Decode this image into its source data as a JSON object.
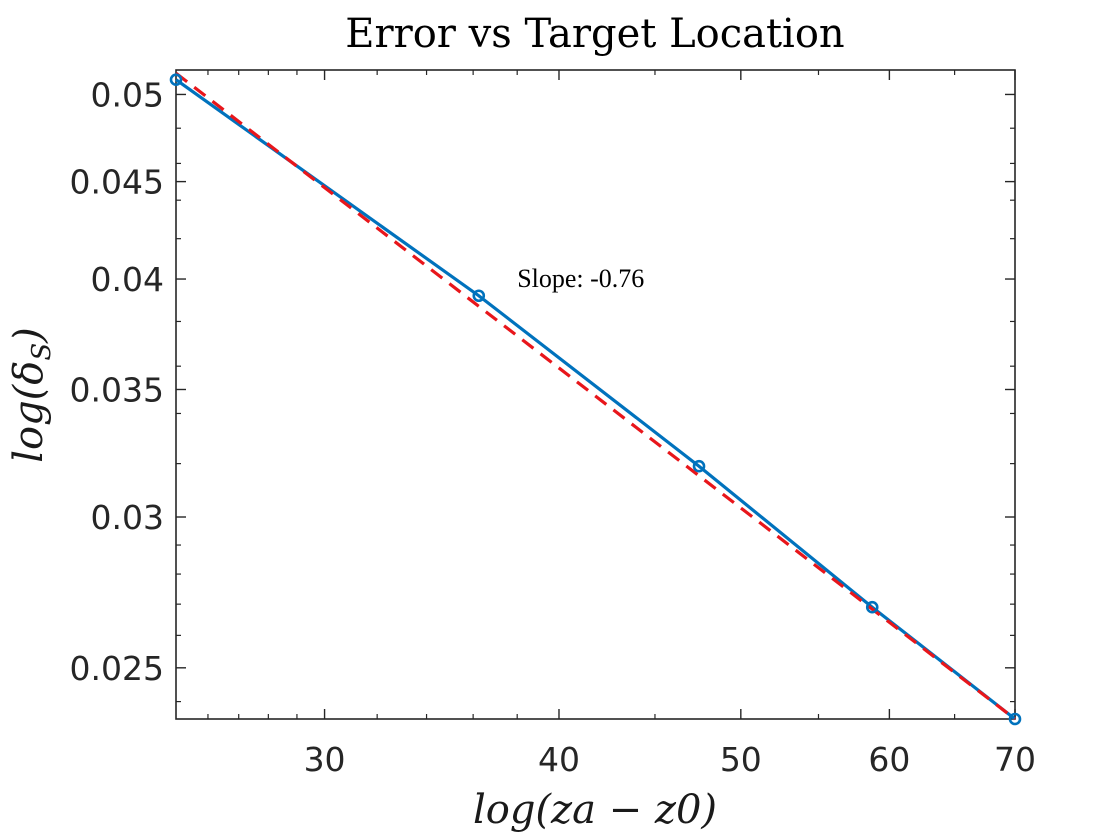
{
  "chart_data": {
    "type": "line",
    "title": "Error vs Target Location",
    "xlabel_parts": {
      "main": "log(za − z0)"
    },
    "ylabel_parts": {
      "pre": "log(δ",
      "sub": "S",
      "post": ")"
    },
    "xscale": "log",
    "yscale": "log",
    "xlim": [
      25,
      70
    ],
    "ylim": [
      0.0235,
      0.0515
    ],
    "xticks": [
      30,
      40,
      50,
      60,
      70
    ],
    "yticks": [
      0.025,
      0.03,
      0.035,
      0.04,
      0.045,
      0.05
    ],
    "xtick_labels": [
      "30",
      "40",
      "50",
      "60",
      "70"
    ],
    "ytick_labels": [
      "0.025",
      "0.03",
      "0.035",
      "0.04",
      "0.045",
      "0.05"
    ],
    "grid": false,
    "legend": "none",
    "annotation": {
      "text": "Slope: -0.76",
      "x": 38,
      "y": 0.04
    },
    "series": [
      {
        "style": "solid-with-circle-markers",
        "color": "#0072BD",
        "x": [
          25,
          36.25,
          47.5,
          58.75,
          70
        ],
        "y": [
          0.0509,
          0.0392,
          0.0319,
          0.0269,
          0.0235
        ]
      },
      {
        "style": "dashed",
        "color": "#E8161B",
        "x": [
          25,
          70
        ],
        "y": [
          0.0513,
          0.0235
        ]
      }
    ]
  }
}
